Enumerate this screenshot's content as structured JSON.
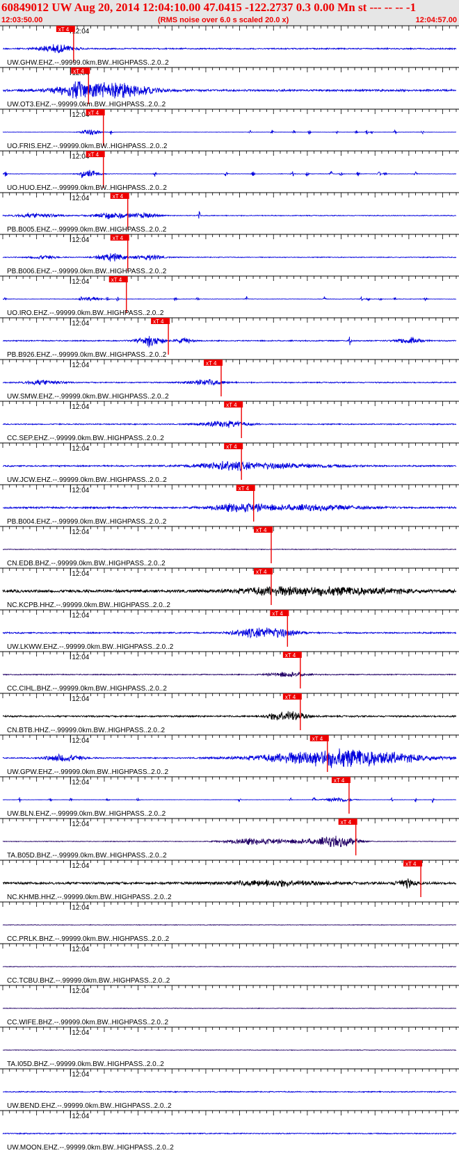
{
  "header": {
    "title": "60849012 UW Aug 20, 2014 12:04:10.00   47.0415 -122.2737  0.3 0.00 Mn st --- -- --  -1",
    "start_time": "12:03:50.00",
    "note": "(RMS noise over 6.0 s scaled 20.0 x)",
    "end_time": "12:04:57.00"
  },
  "colors": {
    "header_text": "#ee0000",
    "header_bg": "#e6e6e6",
    "pick": "#ee0000",
    "axis": "#000000"
  },
  "chart_data": {
    "type": "line",
    "time_range_s": [
      0,
      67
    ],
    "minute_mark_label": "12:04",
    "minute_mark_s": 10,
    "pick_label": "xT 4",
    "series": [
      {
        "label": "UW.GHW.EHZ.--.99999.0km.BW..HIGHPASS..2.0..2",
        "pick_s": 8.0,
        "color": "#0000dd",
        "amp": 0.35,
        "noise": 0.9,
        "events": [
          [
            8.0,
            4,
            2.2
          ]
        ],
        "spikes": []
      },
      {
        "label": "UW.OT3.EHZ.--.99999.0km.BW..HIGHPASS..2.0..2",
        "pick_s": 10.2,
        "color": "#0000dd",
        "amp": 0.5,
        "noise": 1.0,
        "events": [
          [
            10.5,
            3,
            1.6
          ],
          [
            14.2,
            9,
            3.2
          ],
          [
            18.5,
            6,
            1.3
          ]
        ],
        "spikes": []
      },
      {
        "label": "UO.FRIS.EHZ.--.99999.0km.BW..HIGHPASS..2.0..2",
        "pick_s": 12.4,
        "color": "#0000dd",
        "amp": 0.15,
        "noise": 0.5,
        "events": [
          [
            13.0,
            2,
            3.0
          ]
        ],
        "spikes": [
          16.0,
          36.5,
          39.8,
          43.0,
          45.3,
          49.5,
          52.3,
          53.8,
          54.5,
          58.0,
          62.0
        ]
      },
      {
        "label": "UO.HUO.EHZ.--.99999.0km.BW..HIGHPASS..2.0..2",
        "pick_s": 12.4,
        "color": "#0000dd",
        "amp": 0.2,
        "noise": 0.6,
        "events": [
          [
            13.0,
            2,
            3.0
          ]
        ],
        "spikes": [
          0.4,
          11.8,
          22.5,
          33.0,
          37.0,
          42.8,
          45.0,
          48.5,
          50.0,
          52.5,
          55.6,
          56.5,
          61.0
        ]
      },
      {
        "label": "PB.B005.EHZ.--.99999.0km.BW..HIGHPASS..2.0..2",
        "pick_s": 16.0,
        "color": "#0000dd",
        "amp": 0.25,
        "noise": 0.8,
        "events": [
          [
            5.0,
            5,
            1.3
          ],
          [
            16.0,
            4,
            2.0
          ],
          [
            21.0,
            3,
            1.4
          ]
        ],
        "spikes": [
          29.0
        ]
      },
      {
        "label": "PB.B006.EHZ.--.99999.0km.BW..HIGHPASS..2.0..2",
        "pick_s": 16.0,
        "color": "#0000dd",
        "amp": 0.25,
        "noise": 0.8,
        "events": [
          [
            6.0,
            3,
            1.1
          ],
          [
            16.0,
            3,
            2.4
          ],
          [
            21.5,
            3,
            1.6
          ]
        ],
        "spikes": []
      },
      {
        "label": "UO.IRO.EHZ.--.99999.0km.BW..HIGHPASS..2.0..2",
        "pick_s": 15.8,
        "color": "#0000dd",
        "amp": 0.2,
        "noise": 0.55,
        "events": [
          [
            13.0,
            2,
            2.0
          ]
        ],
        "spikes": [
          0.4,
          11.6,
          15.5,
          17.0,
          25.5,
          28.8,
          36.0,
          47.5,
          53.0,
          54.0,
          55.8,
          58.0,
          62.5
        ]
      },
      {
        "label": "PB.B926.EHZ.--.99999.0km.BW..HIGHPASS..2.0..2",
        "pick_s": 22.0,
        "color": "#0000dd",
        "amp": 0.3,
        "noise": 0.9,
        "events": [
          [
            22.0,
            3,
            2.4
          ],
          [
            27.0,
            2,
            1.3
          ],
          [
            60.0,
            3,
            1.6
          ]
        ],
        "spikes": [
          21.5,
          51.3,
          60.5
        ]
      },
      {
        "label": "UW.SMW.EHZ.--.99999.0km.BW..HIGHPASS..2.0..2",
        "pick_s": 29.8,
        "color": "#0000dd",
        "amp": 0.3,
        "noise": 0.9,
        "events": [
          [
            6.0,
            4,
            1.3
          ],
          [
            30.0,
            4,
            1.6
          ]
        ],
        "spikes": []
      },
      {
        "label": "CC.SEP.EHZ.--.99999.0km.BW..HIGHPASS..2.0..2",
        "pick_s": 32.8,
        "color": "#0000dd",
        "amp": 0.3,
        "noise": 0.9,
        "events": [
          [
            33.0,
            5,
            1.7
          ]
        ],
        "spikes": []
      },
      {
        "label": "UW.JCW.EHZ.--.99999.0km.BW..HIGHPASS..2.0..2",
        "pick_s": 32.8,
        "color": "#0000dd",
        "amp": 0.35,
        "noise": 1.0,
        "events": [
          [
            33.0,
            6,
            1.5
          ],
          [
            40.0,
            14,
            1.2
          ]
        ],
        "spikes": []
      },
      {
        "label": "PB.B004.EHZ.--.99999.0km.BW..HIGHPASS..2.0..2",
        "pick_s": 34.6,
        "color": "#0000dd",
        "amp": 0.45,
        "noise": 1.0,
        "events": [
          [
            35.0,
            6,
            1.8
          ],
          [
            45.0,
            12,
            1.2
          ]
        ],
        "spikes": []
      },
      {
        "label": "CN.EDB.BHZ.--.99999.0km.BW..HIGHPASS..2.0..2",
        "pick_s": 37.2,
        "color": "#220066",
        "amp": 0.25,
        "noise": 0.7,
        "events": [],
        "spikes": []
      },
      {
        "label": "NC.KCPB.HHZ.--.99999.0km.BW..HIGHPASS..2.0..2",
        "pick_s": 37.2,
        "color": "#000000",
        "amp": 0.7,
        "noise": 1.0,
        "events": [
          [
            40.0,
            8,
            1.4
          ],
          [
            50.0,
            14,
            1.6
          ]
        ],
        "spikes": []
      },
      {
        "label": "UW.LKWW.EHZ.--.99999.0km.BW..HIGHPASS..2.0..2",
        "pick_s": 39.6,
        "color": "#0000dd",
        "amp": 0.35,
        "noise": 1.0,
        "events": [
          [
            40.0,
            5,
            2.3
          ],
          [
            36.0,
            4,
            1.4
          ]
        ],
        "spikes": []
      },
      {
        "label": "CC.CIHL.BHZ.--.99999.0km.BW..HIGHPASS..2.0..2",
        "pick_s": 41.5,
        "color": "#220066",
        "amp": 0.3,
        "noise": 0.8,
        "events": [
          [
            42.0,
            4,
            1.5
          ]
        ],
        "spikes": []
      },
      {
        "label": "CN.BTB.HHZ.--.99999.0km.BW..HIGHPASS..2.0..2",
        "pick_s": 41.5,
        "color": "#000000",
        "amp": 0.45,
        "noise": 0.9,
        "events": [
          [
            42.0,
            4,
            2.8
          ]
        ],
        "spikes": []
      },
      {
        "label": "UW.GPW.EHZ.--.99999.0km.BW..HIGHPASS..2.0..2",
        "pick_s": 45.5,
        "color": "#0000dd",
        "amp": 0.3,
        "noise": 0.9,
        "events": [
          [
            9.0,
            4,
            2.0
          ],
          [
            50.0,
            16,
            5.0
          ]
        ],
        "spikes": []
      },
      {
        "label": "UW.BLN.EHZ.--.99999.0km.BW..HIGHPASS..2.0..2",
        "pick_s": 48.7,
        "color": "#0000dd",
        "amp": 0.15,
        "noise": 0.5,
        "events": [
          [
            49.5,
            3,
            2.5
          ]
        ],
        "spikes": [
          2.5,
          7.0,
          10.0,
          15.5,
          20.0,
          35.0,
          42.5,
          46.0,
          57.5,
          61.0,
          63.5
        ]
      },
      {
        "label": "TA.B05D.BHZ.--.99999.0km.BW..HIGHPASS..2.0..2",
        "pick_s": 49.7,
        "color": "#220066",
        "amp": 0.2,
        "noise": 0.8,
        "events": [
          [
            37.0,
            6,
            2.0
          ],
          [
            49.7,
            4,
            3.0
          ],
          [
            45.0,
            6,
            1.4
          ]
        ],
        "spikes": []
      },
      {
        "label": "NC.KHMB.HHZ.--.99999.0km.BW..HIGHPASS..2.0..2",
        "pick_s": 59.3,
        "color": "#000000",
        "amp": 0.6,
        "noise": 1.0,
        "events": [
          [
            40.0,
            10,
            1.3
          ],
          [
            59.5,
            2,
            2.0
          ]
        ],
        "spikes": []
      },
      {
        "label": "CC.PRLK.BHZ.--.99999.0km.BW..HIGHPASS..2.0..2",
        "pick_s": null,
        "color": "#220066",
        "amp": 0.2,
        "noise": 0.7,
        "events": [],
        "spikes": []
      },
      {
        "label": "CC.TCBU.BHZ.--.99999.0km.BW..HIGHPASS..2.0..2",
        "pick_s": null,
        "color": "#220066",
        "amp": 0.2,
        "noise": 0.7,
        "events": [],
        "spikes": []
      },
      {
        "label": "CC.WIFE.BHZ.--.99999.0km.BW..HIGHPASS..2.0..2",
        "pick_s": null,
        "color": "#220066",
        "amp": 0.2,
        "noise": 0.7,
        "events": [],
        "spikes": []
      },
      {
        "label": "TA.I05D.BHZ.--.99999.0km.BW..HIGHPASS..2.0..2",
        "pick_s": null,
        "color": "#220066",
        "amp": 0.2,
        "noise": 0.7,
        "events": [],
        "spikes": []
      },
      {
        "label": "UW.BEND.EHZ.--.99999.0km.BW..HIGHPASS..2.0..2",
        "pick_s": null,
        "color": "#0000dd",
        "amp": 0.3,
        "noise": 0.9,
        "events": [],
        "spikes": []
      },
      {
        "label": "UW.MOON.EHZ.--.99999.0km.BW..HIGHPASS..2.0..2",
        "pick_s": null,
        "color": "#0000dd",
        "amp": 0.3,
        "noise": 0.9,
        "events": [],
        "spikes": []
      }
    ]
  }
}
